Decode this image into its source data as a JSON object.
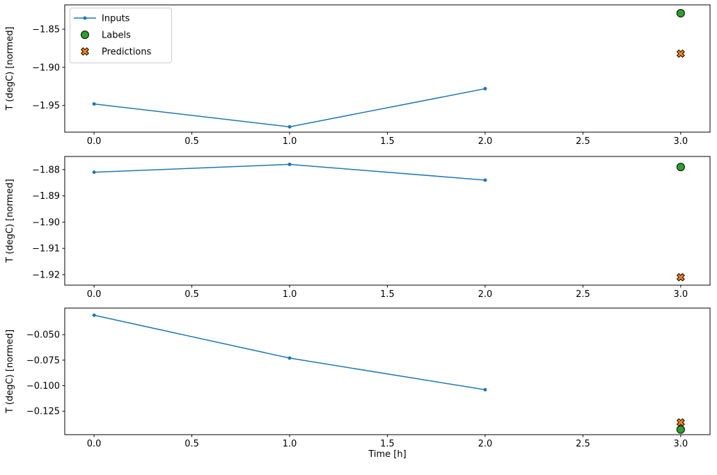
{
  "figure": {
    "xlabel": "Time [h]",
    "background_color": "#ffffff",
    "axis_color": "#000000"
  },
  "legend": {
    "position": "upper left",
    "entries": [
      {
        "label": "Inputs",
        "marker": "line-dot",
        "color": "#1f77b4"
      },
      {
        "label": "Labels",
        "marker": "circle",
        "color": "#2ca02c",
        "edge_color": "#000000"
      },
      {
        "label": "Predictions",
        "marker": "X",
        "color": "#ff7f0e",
        "edge_color": "#000000"
      }
    ]
  },
  "chart_data": [
    {
      "type": "line",
      "subplot": 1,
      "ylabel": "T (degC) [normed]",
      "xlabel": "",
      "xlim": [
        -0.15,
        3.15
      ],
      "ylim": [
        -1.985,
        -1.818
      ],
      "grid": false,
      "legend_visible": true,
      "xticks": {
        "values": [
          0.0,
          0.5,
          1.0,
          1.5,
          2.0,
          2.5,
          3.0
        ],
        "labels": [
          "0.0",
          "0.5",
          "1.0",
          "1.5",
          "2.0",
          "2.5",
          "3.0"
        ]
      },
      "yticks": {
        "values": [
          -1.85,
          -1.9,
          -1.95
        ],
        "labels": [
          "−1.85",
          "−1.90",
          "−1.95"
        ]
      },
      "series": [
        {
          "name": "Inputs",
          "kind": "line",
          "color": "#1f77b4",
          "x": [
            0,
            1,
            2
          ],
          "y": [
            -1.948,
            -1.978,
            -1.928
          ]
        },
        {
          "name": "Labels",
          "kind": "scatter",
          "marker": "circle",
          "color": "#2ca02c",
          "edge_color": "#000000",
          "x": [
            3
          ],
          "y": [
            -1.829
          ]
        },
        {
          "name": "Predictions",
          "kind": "scatter",
          "marker": "X",
          "color": "#ff7f0e",
          "edge_color": "#000000",
          "x": [
            3
          ],
          "y": [
            -1.882
          ]
        }
      ]
    },
    {
      "type": "line",
      "subplot": 2,
      "ylabel": "T (degC) [normed]",
      "xlabel": "",
      "xlim": [
        -0.15,
        3.15
      ],
      "ylim": [
        -1.924,
        -1.875
      ],
      "grid": false,
      "legend_visible": false,
      "xticks": {
        "values": [
          0.0,
          0.5,
          1.0,
          1.5,
          2.0,
          2.5,
          3.0
        ],
        "labels": [
          "0.0",
          "0.5",
          "1.0",
          "1.5",
          "2.0",
          "2.5",
          "3.0"
        ]
      },
      "yticks": {
        "values": [
          -1.88,
          -1.89,
          -1.9,
          -1.91,
          -1.92
        ],
        "labels": [
          "−1.88",
          "−1.89",
          "−1.90",
          "−1.91",
          "−1.92"
        ]
      },
      "series": [
        {
          "name": "Inputs",
          "kind": "line",
          "color": "#1f77b4",
          "x": [
            0,
            1,
            2
          ],
          "y": [
            -1.881,
            -1.878,
            -1.884
          ]
        },
        {
          "name": "Labels",
          "kind": "scatter",
          "marker": "circle",
          "color": "#2ca02c",
          "edge_color": "#000000",
          "x": [
            3
          ],
          "y": [
            -1.879
          ]
        },
        {
          "name": "Predictions",
          "kind": "scatter",
          "marker": "X",
          "color": "#ff7f0e",
          "edge_color": "#000000",
          "x": [
            3
          ],
          "y": [
            -1.921
          ]
        }
      ]
    },
    {
      "type": "line",
      "subplot": 3,
      "ylabel": "T (degC) [normed]",
      "xlabel": "Time [h]",
      "xlim": [
        -0.15,
        3.15
      ],
      "ylim": [
        -0.148,
        -0.024
      ],
      "grid": false,
      "legend_visible": false,
      "xticks": {
        "values": [
          0.0,
          0.5,
          1.0,
          1.5,
          2.0,
          2.5,
          3.0
        ],
        "labels": [
          "0.0",
          "0.5",
          "1.0",
          "1.5",
          "2.0",
          "2.5",
          "3.0"
        ]
      },
      "yticks": {
        "values": [
          -0.05,
          -0.075,
          -0.1,
          -0.125
        ],
        "labels": [
          "−0.050",
          "−0.075",
          "−0.100",
          "−0.125"
        ]
      },
      "series": [
        {
          "name": "Inputs",
          "kind": "line",
          "color": "#1f77b4",
          "x": [
            0,
            1,
            2
          ],
          "y": [
            -0.031,
            -0.073,
            -0.104
          ]
        },
        {
          "name": "Labels",
          "kind": "scatter",
          "marker": "circle",
          "color": "#2ca02c",
          "edge_color": "#000000",
          "x": [
            3
          ],
          "y": [
            -0.143
          ]
        },
        {
          "name": "Predictions",
          "kind": "scatter",
          "marker": "X",
          "color": "#ff7f0e",
          "edge_color": "#000000",
          "x": [
            3
          ],
          "y": [
            -0.136
          ]
        }
      ]
    }
  ]
}
